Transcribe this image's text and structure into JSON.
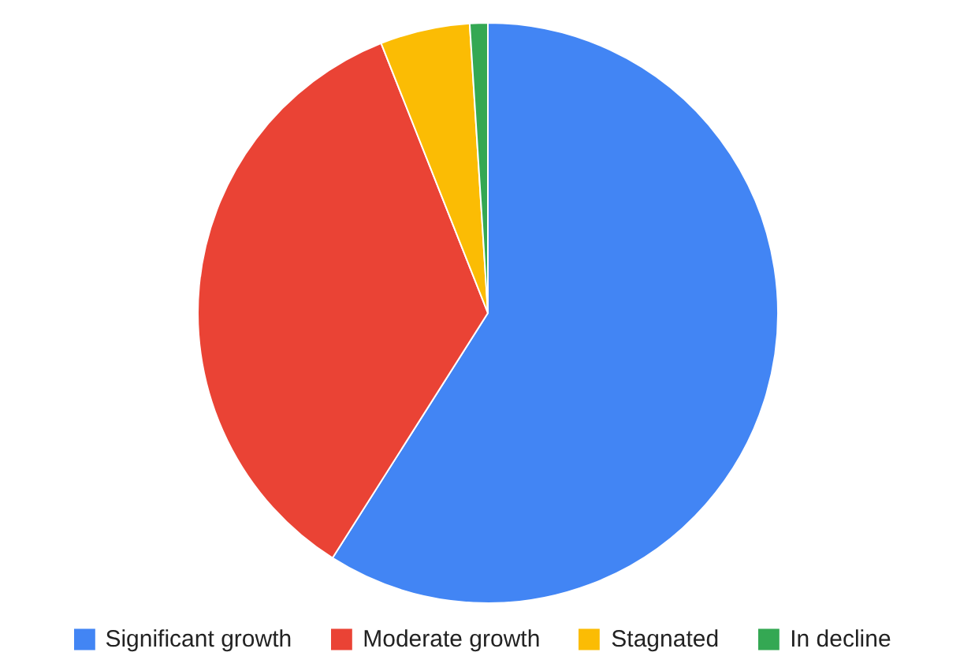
{
  "chart_data": {
    "type": "pie",
    "categories": [
      "Significant growth",
      "Moderate growth",
      "Stagnated",
      "In decline"
    ],
    "values": [
      59,
      35,
      5,
      1
    ],
    "colors": [
      "#4285f4",
      "#ea4335",
      "#fbbc04",
      "#34a853"
    ],
    "legend": "bottom"
  }
}
